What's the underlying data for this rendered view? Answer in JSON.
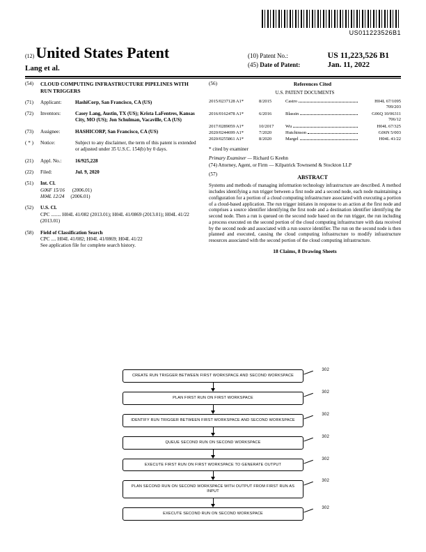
{
  "barcode_text": "US011223526B1",
  "header": {
    "doc_code": "(12)",
    "title": "United States Patent",
    "inventors": "Lang et al.",
    "patent_no_code": "(10)",
    "patent_no_label": "Patent No.:",
    "patent_no": "US 11,223,526 B1",
    "date_code": "(45)",
    "date_label": "Date of Patent:",
    "date_value": "Jan. 11, 2022"
  },
  "left": {
    "f54_num": "(54)",
    "f54_title": "CLOUD COMPUTING INFRASTRUCTURE PIPELINES WITH RUN TRIGGERS",
    "f71_num": "(71)",
    "f71_label": "Applicant:",
    "f71_val": "HashiCorp, San Francisco, CA (US)",
    "f72_num": "(72)",
    "f72_label": "Inventors:",
    "f72_val": "Casey Lang, Austin, TX (US); Krista LaFentres, Kansas City, MO (US); Jon Schulman, Vacaville, CA (US)",
    "f73_num": "(73)",
    "f73_label": "Assignee:",
    "f73_val": "HASHICORP, San Francisco, CA (US)",
    "fnotice_num": "( * )",
    "fnotice_label": "Notice:",
    "fnotice_val": "Subject to any disclaimer, the term of this patent is extended or adjusted under 35 U.S.C. 154(b) by 0 days.",
    "f21_num": "(21)",
    "f21_label": "Appl. No.:",
    "f21_val": "16/925,228",
    "f22_num": "(22)",
    "f22_label": "Filed:",
    "f22_val": "Jul. 9, 2020",
    "f51_num": "(51)",
    "f51_label": "Int. Cl.",
    "f51_a": "G06F 15/16",
    "f51_a_yr": "(2006.01)",
    "f51_b": "H04L 12/24",
    "f51_b_yr": "(2006.01)",
    "f52_num": "(52)",
    "f52_label": "U.S. Cl.",
    "f52_val": "CPC ........ H04L 41/082 (2013.01); H04L 41/0869 (2013.01); H04L 41/22 (2013.01)",
    "f58_num": "(58)",
    "f58_label": "Field of Classification Search",
    "f58_val": "CPC .... H04L 41/082; H04L 41/0869; H04L 41/22",
    "f58_note": "See application file for complete search history."
  },
  "right": {
    "f56_num": "(56)",
    "f56_label": "References Cited",
    "us_docs": "U.S. PATENT DOCUMENTS",
    "refs": [
      {
        "a": "2015/0237128 A1*",
        "b": "8/2015",
        "c": "Castro",
        "d": "H04L 67/1095 709/203"
      },
      {
        "a": "2016/0162478 A1*",
        "b": "6/2016",
        "c": "Blassin",
        "d": "G06Q 10/06311 706/12"
      },
      {
        "a": "2017/0289059 A1*",
        "b": "10/2017",
        "c": "Wu",
        "d": "H04L 67/325"
      },
      {
        "a": "2020/0244699 A1*",
        "b": "7/2020",
        "c": "Hutchinson",
        "d": "G06N 5/003"
      },
      {
        "a": "2020/0255861 A1*",
        "b": "8/2020",
        "c": "Margel",
        "d": "H04L 41/22"
      }
    ],
    "cited": "* cited by examiner",
    "examiner_label": "Primary Examiner —",
    "examiner": "Richard G Keehn",
    "attorney_label": "(74) Attorney, Agent, or Firm —",
    "attorney": "Kilpatrick Townsend & Stockton LLP",
    "f57_num": "(57)",
    "abstract_head": "ABSTRACT",
    "abstract": "Systems and methods of managing information technology infrastructure are described. A method includes identifying a run trigger between a first node and a second node, each node maintaining a configuration for a portion of a cloud computing infrastructure associated with executing a portion of a cloud-based application. The run trigger initiates in response to an action at the first node and comprises a source identifier identifying the first node and a destination identifier identifying the second node. Then a run is queued on the second node based on the run trigger, the run including a process executed on the second portion of the cloud computing infrastructure with data received by the second node and associated with a run source identifier. The run on the second node is then planned and executed, causing the cloud computing infrastructure to modify infrastructure resources associated with the second portion of the cloud computing infrastructure.",
    "claims": "18 Claims, 8 Drawing Sheets"
  },
  "flow": {
    "ref_prefix": "302",
    "steps": [
      "CREATE RUN TRIGGER BETWEEN FIRST WORKSPACE AND SECOND WORKSPACE",
      "PLAN FIRST RUN ON FIRST WORKSPACE",
      "IDENTIFY RUN TRIGGER BETWEEN FIRST WORKSPACE AND SECOND WORKSPACE",
      "QUEUE SECOND RUN ON SECOND WORKSPACE",
      "EXECUTE FIRST RUN ON FIRST WORKSPACE TO GENERATE OUTPUT",
      "PLAN SECOND RUN ON SECOND WORKSPACE WITH OUTPUT FROM FIRST RUN AS INPUT",
      "EXECUTE SECOND RUN ON SECOND WORKSPACE"
    ]
  }
}
